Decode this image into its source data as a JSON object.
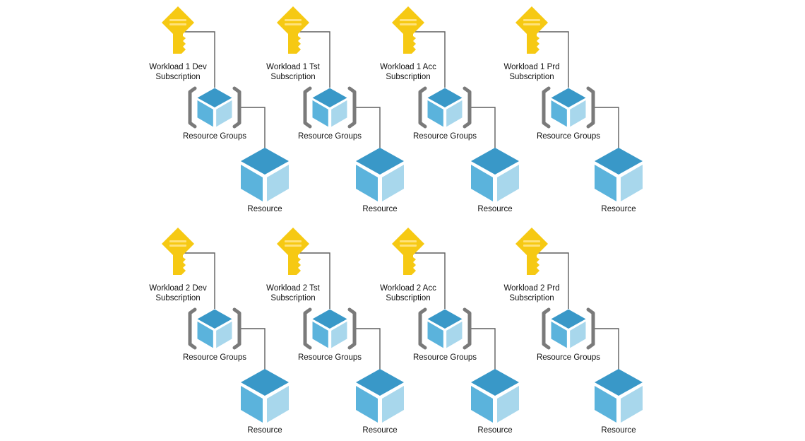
{
  "diagram": {
    "type": "hierarchy",
    "colors": {
      "key": "#f6c913",
      "key_slot": "#ffe27a",
      "cube_top": "#3998c8",
      "cube_left": "#5bb3dc",
      "cube_right": "#a8d7ec",
      "bracket": "#7a7a7a",
      "connector": "#5f5f5f",
      "text": "#111111"
    },
    "rows": [
      {
        "workload": "Workload 1",
        "items": [
          {
            "subscription": [
              "Workload 1 Dev",
              "Subscription"
            ],
            "resource_group": "Resource Groups",
            "resource": "Resource"
          },
          {
            "subscription": [
              "Workload 1 Tst",
              "Subscription"
            ],
            "resource_group": "Resource Groups",
            "resource": "Resource"
          },
          {
            "subscription": [
              "Workload 1 Acc",
              "Subscription"
            ],
            "resource_group": "Resource Groups",
            "resource": "Resource"
          },
          {
            "subscription": [
              "Workload 1 Prd",
              "Subscription"
            ],
            "resource_group": "Resource Groups",
            "resource": "Resource"
          }
        ]
      },
      {
        "workload": "Workload 2",
        "items": [
          {
            "subscription": [
              "Workload 2 Dev",
              "Subscription"
            ],
            "resource_group": "Resource Groups",
            "resource": "Resource"
          },
          {
            "subscription": [
              "Workload 2 Tst",
              "Subscription"
            ],
            "resource_group": "Resource Groups",
            "resource": "Resource"
          },
          {
            "subscription": [
              "Workload 2 Acc",
              "Subscription"
            ],
            "resource_group": "Resource Groups",
            "resource": "Resource"
          },
          {
            "subscription": [
              "Workload 2 Prd",
              "Subscription"
            ],
            "resource_group": "Resource Groups",
            "resource": "Resource"
          }
        ]
      }
    ]
  }
}
